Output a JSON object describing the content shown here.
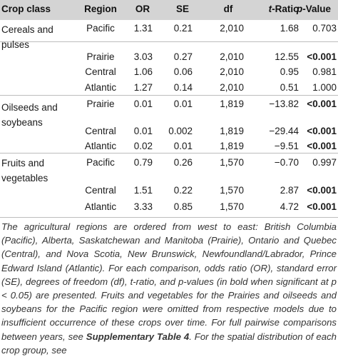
{
  "table": {
    "headers": {
      "crop_class": "Crop class",
      "region": "Region",
      "or": "OR",
      "se": "SE",
      "df": "df",
      "t_ratio_italic": "t",
      "t_ratio_rest": "-Ratio",
      "p_value_italic": "p",
      "p_value_rest": "-Value"
    },
    "crop_classes": [
      {
        "label": "Cereals and pulses"
      },
      {
        "label": "Oilseeds and soybeans"
      },
      {
        "label": "Fruits and vegetables"
      }
    ],
    "rows": [
      {
        "region": "Pacific",
        "or": "1.31",
        "se": "0.21",
        "df": "2,010",
        "t": "1.68",
        "p": "0.703",
        "p_bold": false
      },
      {
        "region": "Prairie",
        "or": "3.03",
        "se": "0.27",
        "df": "2,010",
        "t": "12.55",
        "p": "<0.001",
        "p_bold": true
      },
      {
        "region": "Central",
        "or": "1.06",
        "se": "0.06",
        "df": "2,010",
        "t": "0.95",
        "p": "0.981",
        "p_bold": false
      },
      {
        "region": "Atlantic",
        "or": "1.27",
        "se": "0.14",
        "df": "2,010",
        "t": "0.51",
        "p": "1.000",
        "p_bold": false
      },
      {
        "region": "Prairie",
        "or": "0.01",
        "se": "0.01",
        "df": "1,819",
        "t": "−13.82",
        "p": "<0.001",
        "p_bold": true
      },
      {
        "region": "Central",
        "or": "0.01",
        "se": "0.002",
        "df": "1,819",
        "t": "−29.44",
        "p": "<0.001",
        "p_bold": true
      },
      {
        "region": "Atlantic",
        "or": "0.02",
        "se": "0.01",
        "df": "1,819",
        "t": "−9.51",
        "p": "<0.001",
        "p_bold": true
      },
      {
        "region": "Pacific",
        "or": "0.79",
        "se": "0.26",
        "df": "1,570",
        "t": "−0.70",
        "p": "0.997",
        "p_bold": false
      },
      {
        "region": "Central",
        "or": "1.51",
        "se": "0.22",
        "df": "1,570",
        "t": "2.87",
        "p": "<0.001",
        "p_bold": true
      },
      {
        "region": "Atlantic",
        "or": "3.33",
        "se": "0.85",
        "df": "1,570",
        "t": "4.72",
        "p": "<0.001",
        "p_bold": true
      }
    ]
  },
  "footnote": {
    "part1": "The agricultural regions are ordered from west to east: British Columbia (Pacific), Alberta, Saskatchewan and Manitoba (Prairie), Ontario and Quebec (Central), and Nova Scotia, New Brunswick, Newfoundland/Labrador, Prince Edward Island (Atlantic). For each comparison, odds ratio (OR), standard error (SE), degrees of freedom (df), t-ratio, and p-values (in bold when significant at p < 0.05) are presented. Fruits and vegetables for the Prairies and oilseeds and soybeans for the Pacific region were omitted from respective models due to insufficient occurrence of these crops over time. For full pairwise comparisons between years, see ",
    "link": "Supplementary Table 4",
    "part2": ". For the spatial distribution of each crop group, see"
  },
  "colors": {
    "header_bg": "#d4d4d4",
    "rule": "#bdbdbd",
    "text": "#1a1a1a"
  }
}
